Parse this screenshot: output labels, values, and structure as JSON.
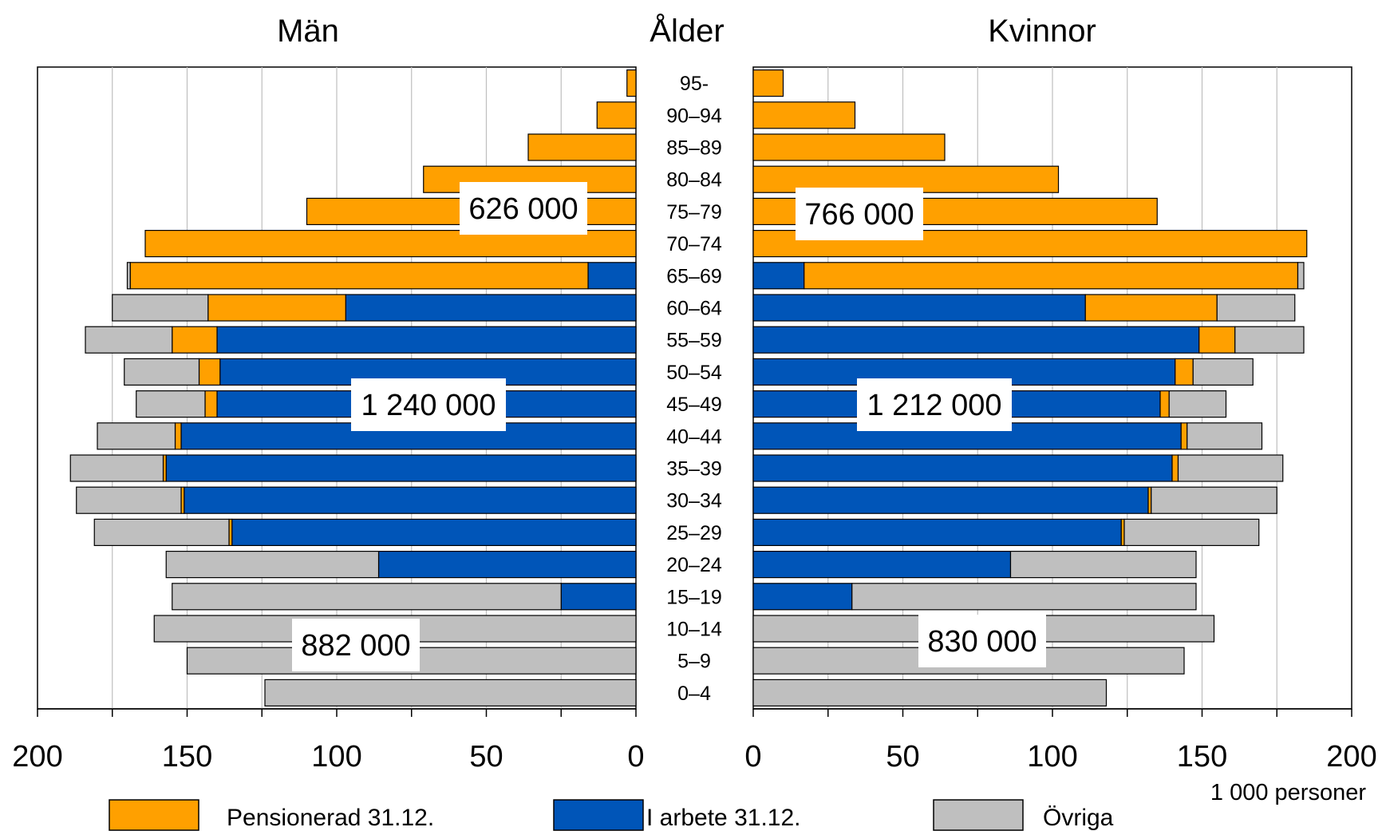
{
  "chart_data": {
    "type": "bar",
    "orientation": "horizontal",
    "stacked": true,
    "layout": "population-pyramid",
    "grid": true,
    "legend_position": "bottom",
    "panel_titles": {
      "left": "Män",
      "center": "Ålder",
      "right": "Kvinnor"
    },
    "unit_label": "1 000 personer",
    "xlim": [
      0,
      200
    ],
    "x_ticks_left": [
      "200",
      "150",
      "100",
      "50",
      "0"
    ],
    "x_ticks_right": [
      "0",
      "50",
      "100",
      "150",
      "200"
    ],
    "categories": [
      "95-",
      "90–94",
      "85–89",
      "80–84",
      "75–79",
      "70–74",
      "65–69",
      "60–64",
      "55–59",
      "50–54",
      "45–49",
      "40–44",
      "35–39",
      "30–34",
      "25–29",
      "20–24",
      "15–19",
      "10–14",
      "5–9",
      "0–4"
    ],
    "series_legend": [
      {
        "key": "arbete",
        "name": "I arbete 31.12.",
        "color": "#0055B8"
      },
      {
        "key": "pension",
        "name": "Pensionerad 31.12.",
        "color": "#FFA000"
      },
      {
        "key": "ovriga",
        "name": "Övriga",
        "color": "#BFBFBF"
      }
    ],
    "legend_order": [
      "pension",
      "arbete",
      "ovriga"
    ],
    "men": {
      "arbete": [
        0,
        0,
        0,
        0,
        0,
        0,
        16,
        97,
        140,
        139,
        140,
        152,
        157,
        151,
        135,
        86,
        25,
        0,
        0,
        0
      ],
      "pension": [
        3,
        13,
        36,
        71,
        110,
        164,
        153,
        46,
        15,
        7,
        4,
        2,
        1,
        1,
        1,
        0,
        0,
        0,
        0,
        0
      ],
      "ovriga": [
        0,
        0,
        0,
        0,
        0,
        0,
        1,
        32,
        29,
        25,
        23,
        26,
        31,
        35,
        45,
        71,
        130,
        161,
        150,
        124
      ]
    },
    "women": {
      "arbete": [
        0,
        0,
        0,
        0,
        0,
        0,
        17,
        111,
        149,
        141,
        136,
        143,
        140,
        132,
        123,
        86,
        33,
        0,
        0,
        0
      ],
      "pension": [
        10,
        34,
        64,
        102,
        135,
        185,
        165,
        44,
        12,
        6,
        3,
        2,
        2,
        1,
        1,
        0,
        0,
        0,
        0,
        0
      ],
      "ovriga": [
        0,
        0,
        0,
        0,
        0,
        0,
        2,
        26,
        23,
        20,
        19,
        25,
        35,
        42,
        45,
        62,
        115,
        154,
        144,
        118
      ]
    },
    "totals": {
      "men": {
        "pension": "626 000",
        "arbete": "1 240 000",
        "ovriga": "882 000"
      },
      "women": {
        "pension": "766 000",
        "arbete": "1 212 000",
        "ovriga": "830 000"
      }
    }
  }
}
